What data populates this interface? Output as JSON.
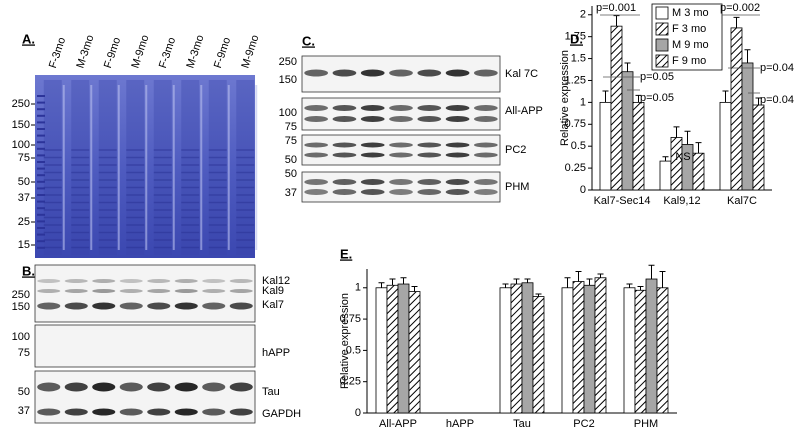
{
  "panel_a": {
    "label": "A.",
    "lanes": [
      "F-3mo",
      "M-3mo",
      "F-9mo",
      "M-9mo",
      "F-3mo",
      "M-3mo",
      "F-9mo",
      "M-9mo"
    ],
    "markers": [
      250,
      150,
      100,
      75,
      50,
      37,
      25,
      15
    ]
  },
  "panel_b": {
    "label": "B.",
    "markers": [
      250,
      150,
      100,
      75,
      50,
      37
    ],
    "bands": [
      "Kal12",
      "Kal9",
      "Kal7",
      "hAPP",
      "Tau",
      "GAPDH"
    ]
  },
  "panel_c": {
    "label": "C.",
    "markers": [
      250,
      150,
      100,
      75,
      75,
      50,
      50,
      37
    ],
    "bands": [
      "Kal 7C",
      "All-APP",
      "PC2",
      "PHM"
    ]
  },
  "chart_data": [
    {
      "type": "bar",
      "label": "D.",
      "y_label": "Relative expression",
      "categories": [
        "Kal7-Sec14",
        "Kal9,12",
        "Kal7C"
      ],
      "series": [
        {
          "name": "M 3 mo",
          "color": "#ffffff",
          "hatch": false,
          "values": [
            1.0,
            0.33,
            1.0
          ],
          "errors": [
            0.13,
            0.05,
            0.13
          ]
        },
        {
          "name": "F 3 mo",
          "color": "#ffffff",
          "hatch": true,
          "values": [
            1.87,
            0.6,
            1.85
          ],
          "errors": [
            0.12,
            0.12,
            0.12
          ]
        },
        {
          "name": "M 9 mo",
          "color": "#a6a6a6",
          "hatch": false,
          "values": [
            1.35,
            0.52,
            1.45
          ],
          "errors": [
            0.1,
            0.15,
            0.15
          ]
        },
        {
          "name": "F 9 mo",
          "color": "#ffffff",
          "hatch": true,
          "values": [
            1.0,
            0.42,
            0.97
          ],
          "errors": [
            0.08,
            0.12,
            0.08
          ]
        }
      ],
      "ylim": [
        0,
        2.1
      ],
      "yticks": [
        0,
        0.25,
        0.5,
        0.75,
        1,
        1.25,
        1.5,
        1.75,
        2
      ],
      "grid": false,
      "legend": "top",
      "annotations": [
        "p=0.001",
        "p=0.05",
        "p=0.05",
        "NS",
        "p=0.002",
        "p=0.04",
        "p=0.04"
      ]
    },
    {
      "type": "bar",
      "label": "E.",
      "y_label": "Relative expression",
      "categories": [
        "All-APP",
        "hAPP",
        "Tau",
        "PC2",
        "PHM"
      ],
      "series": [
        {
          "color": "#ffffff",
          "hatch": false,
          "values": [
            1.0,
            null,
            1.0,
            1.0,
            1.0
          ],
          "errors": [
            0.04,
            null,
            0.03,
            0.08,
            0.03
          ]
        },
        {
          "color": "#ffffff",
          "hatch": true,
          "values": [
            1.02,
            null,
            1.03,
            1.05,
            0.98
          ],
          "errors": [
            0.05,
            null,
            0.04,
            0.08,
            0.03
          ]
        },
        {
          "color": "#a6a6a6",
          "hatch": false,
          "values": [
            1.03,
            null,
            1.04,
            1.02,
            1.07
          ],
          "errors": [
            0.05,
            null,
            0.03,
            0.05,
            0.11
          ]
        },
        {
          "color": "#ffffff",
          "hatch": true,
          "values": [
            0.97,
            null,
            0.93,
            1.08,
            1.0
          ],
          "errors": [
            0.04,
            null,
            0.02,
            0.03,
            0.13
          ]
        }
      ],
      "ylim": [
        0,
        1.15
      ],
      "yticks": [
        0,
        0.25,
        0.5,
        0.75,
        1
      ],
      "grid": false
    }
  ]
}
